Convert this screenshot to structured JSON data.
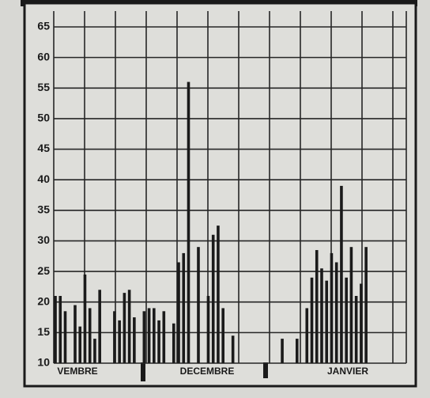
{
  "chart_data": {
    "type": "bar",
    "categories": [
      null,
      null,
      null,
      null,
      null,
      null,
      null,
      null,
      null,
      null,
      null,
      null,
      null,
      null,
      null,
      null,
      null,
      null,
      null,
      null,
      null,
      null,
      null,
      null,
      null,
      null,
      null,
      null,
      null,
      null,
      null,
      null,
      null,
      null,
      null,
      null,
      null,
      null,
      null,
      null,
      null,
      null,
      null,
      null,
      null,
      null,
      null,
      null,
      null,
      null,
      null,
      null,
      null,
      null,
      null,
      null,
      null,
      null,
      null,
      null,
      null,
      null,
      null,
      null
    ],
    "values": [
      21,
      21,
      18.5,
      null,
      19.5,
      16,
      24.5,
      19,
      14,
      22,
      null,
      null,
      18.5,
      17,
      21.5,
      22,
      17.5,
      null,
      18.5,
      19,
      19,
      17,
      18.5,
      null,
      16.5,
      26.5,
      28,
      56,
      null,
      29,
      null,
      21,
      31,
      32.5,
      19,
      null,
      14.5,
      null,
      null,
      null,
      null,
      null,
      null,
      null,
      null,
      null,
      14,
      null,
      null,
      14,
      null,
      19,
      24,
      28.5,
      25.5,
      23.5,
      28,
      26.5,
      39,
      24,
      29,
      21,
      23,
      29
    ],
    "color": "#1a1a1a",
    "ylim": [
      10,
      65
    ],
    "yticks": [
      10,
      15,
      20,
      25,
      30,
      35,
      40,
      45,
      50,
      55,
      60,
      65
    ],
    "grid": true,
    "x_labels": [
      "VEMBRE",
      "DECEMBRE",
      "JANVIER"
    ]
  }
}
